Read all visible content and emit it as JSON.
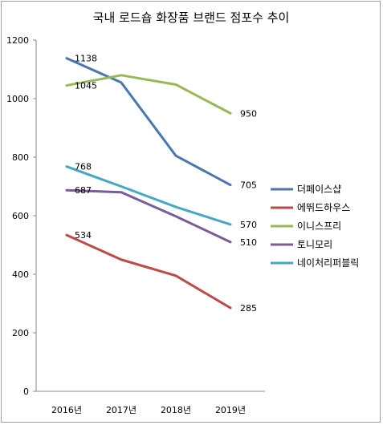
{
  "chart_data": {
    "type": "line",
    "title": "국내 로드숍 화장품 브랜드 점포수 추이",
    "xlabel": "",
    "ylabel": "",
    "categories": [
      "2016년",
      "2017년",
      "2018년",
      "2019년"
    ],
    "ylim": [
      0,
      1200
    ],
    "yticks": [
      "0",
      "200",
      "400",
      "600",
      "800",
      "1000",
      "1200"
    ],
    "legend_position": "right",
    "grid": false,
    "series": [
      {
        "name": "더페이스샵",
        "color": "#4a77ad",
        "values": [
          1138,
          1055,
          805,
          705
        ],
        "labels": [
          "1138",
          "",
          "",
          "705"
        ]
      },
      {
        "name": "에뛰드하우스",
        "color": "#bc4b48",
        "values": [
          534,
          450,
          395,
          285
        ],
        "labels": [
          "534",
          "",
          "",
          "285"
        ]
      },
      {
        "name": "이니스프리",
        "color": "#97b855",
        "values": [
          1045,
          1080,
          1048,
          950
        ],
        "labels": [
          "1045",
          "",
          "",
          "950"
        ]
      },
      {
        "name": "토니모리",
        "color": "#7a5c9a",
        "values": [
          687,
          680,
          598,
          510
        ],
        "labels": [
          "687",
          "",
          "",
          "510"
        ]
      },
      {
        "name": "네이처리퍼블릭",
        "color": "#45a8c1",
        "values": [
          768,
          700,
          630,
          570
        ],
        "labels": [
          "768",
          "",
          "",
          "570"
        ]
      }
    ]
  }
}
